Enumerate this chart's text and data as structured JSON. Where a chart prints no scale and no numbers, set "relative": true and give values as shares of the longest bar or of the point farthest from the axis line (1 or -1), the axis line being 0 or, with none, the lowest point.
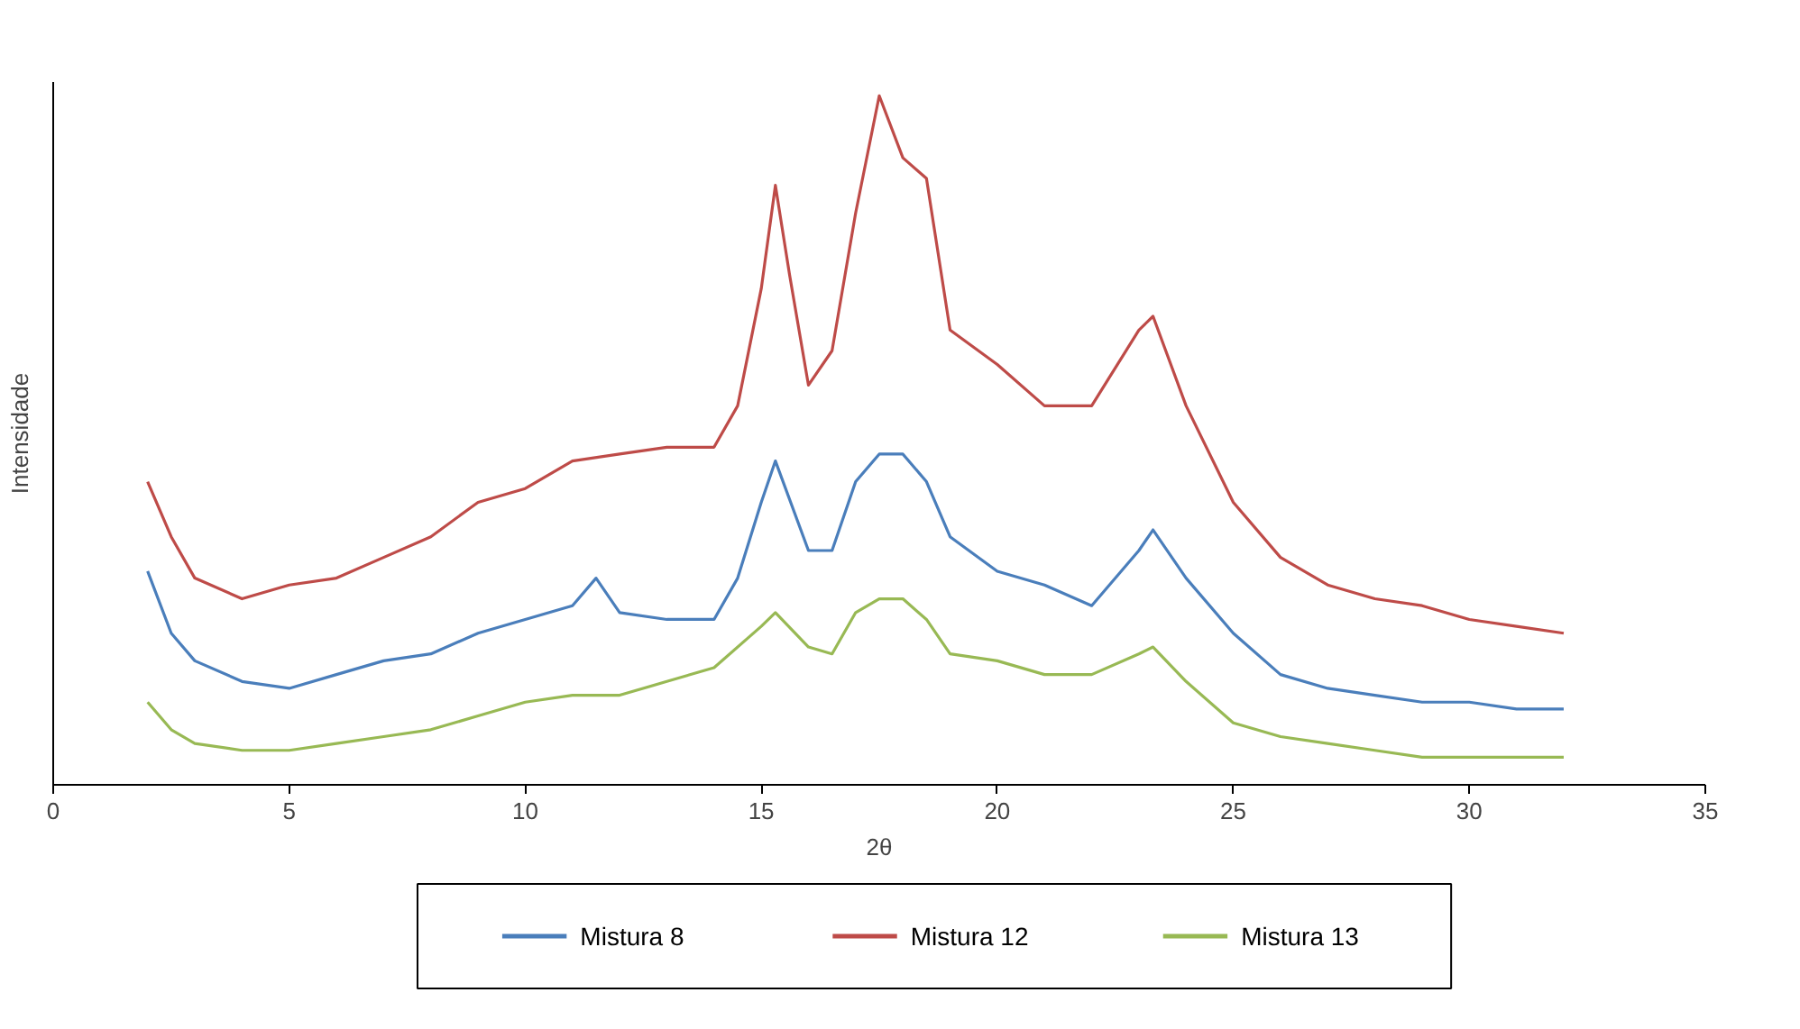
{
  "chart_data": {
    "type": "line",
    "xlabel": "2θ",
    "ylabel": "Intensidade",
    "relative": true,
    "xlim": [
      0,
      35
    ],
    "xticks": [
      0,
      5,
      10,
      15,
      20,
      25,
      30,
      35
    ],
    "grid": false,
    "legend": "bottom",
    "line_style": "solid",
    "marker": "none",
    "series": [
      {
        "name": "Mistura 8",
        "color": "#4a7ebb",
        "x": [
          2,
          2.5,
          3,
          4,
          5,
          6,
          7,
          8,
          9,
          10,
          11,
          11.5,
          12,
          13,
          14,
          14.5,
          15,
          15.3,
          16,
          16.5,
          17,
          17.5,
          18,
          18.5,
          19,
          20,
          21,
          22,
          23,
          23.3,
          24,
          25,
          26,
          27,
          28,
          29,
          30,
          31,
          32
        ],
        "values": [
          0.31,
          0.22,
          0.18,
          0.15,
          0.14,
          0.16,
          0.18,
          0.19,
          0.22,
          0.24,
          0.26,
          0.3,
          0.25,
          0.24,
          0.24,
          0.3,
          0.41,
          0.47,
          0.34,
          0.34,
          0.44,
          0.48,
          0.48,
          0.44,
          0.36,
          0.31,
          0.29,
          0.26,
          0.34,
          0.37,
          0.3,
          0.22,
          0.16,
          0.14,
          0.13,
          0.12,
          0.12,
          0.11,
          0.11
        ]
      },
      {
        "name": "Mistura 12",
        "color": "#be4b48",
        "x": [
          2,
          2.5,
          3,
          4,
          5,
          6,
          7,
          8,
          9,
          10,
          11,
          12,
          13,
          14,
          14.5,
          15,
          15.3,
          15.6,
          16,
          16.5,
          17,
          17.5,
          18,
          18.5,
          19,
          20,
          21,
          22,
          23,
          23.3,
          24,
          25,
          26,
          27,
          28,
          29,
          30,
          31,
          32
        ],
        "values": [
          0.44,
          0.36,
          0.3,
          0.27,
          0.29,
          0.3,
          0.33,
          0.36,
          0.41,
          0.43,
          0.47,
          0.48,
          0.49,
          0.49,
          0.55,
          0.72,
          0.87,
          0.74,
          0.58,
          0.63,
          0.83,
          1.0,
          0.91,
          0.88,
          0.66,
          0.61,
          0.55,
          0.55,
          0.66,
          0.68,
          0.55,
          0.41,
          0.33,
          0.29,
          0.27,
          0.26,
          0.24,
          0.23,
          0.22
        ]
      },
      {
        "name": "Mistura 13",
        "color": "#98b954",
        "x": [
          2,
          2.5,
          3,
          4,
          5,
          6,
          7,
          8,
          9,
          10,
          11,
          12,
          13,
          14,
          15,
          15.3,
          16,
          16.5,
          17,
          17.5,
          18,
          18.5,
          19,
          20,
          21,
          22,
          23,
          23.3,
          24,
          25,
          26,
          27,
          28,
          29,
          30,
          31,
          32
        ],
        "values": [
          0.12,
          0.08,
          0.06,
          0.05,
          0.05,
          0.06,
          0.07,
          0.08,
          0.1,
          0.12,
          0.13,
          0.13,
          0.15,
          0.17,
          0.23,
          0.25,
          0.2,
          0.19,
          0.25,
          0.27,
          0.27,
          0.24,
          0.19,
          0.18,
          0.16,
          0.16,
          0.19,
          0.2,
          0.15,
          0.09,
          0.07,
          0.06,
          0.05,
          0.04,
          0.04,
          0.04,
          0.04
        ]
      }
    ]
  }
}
